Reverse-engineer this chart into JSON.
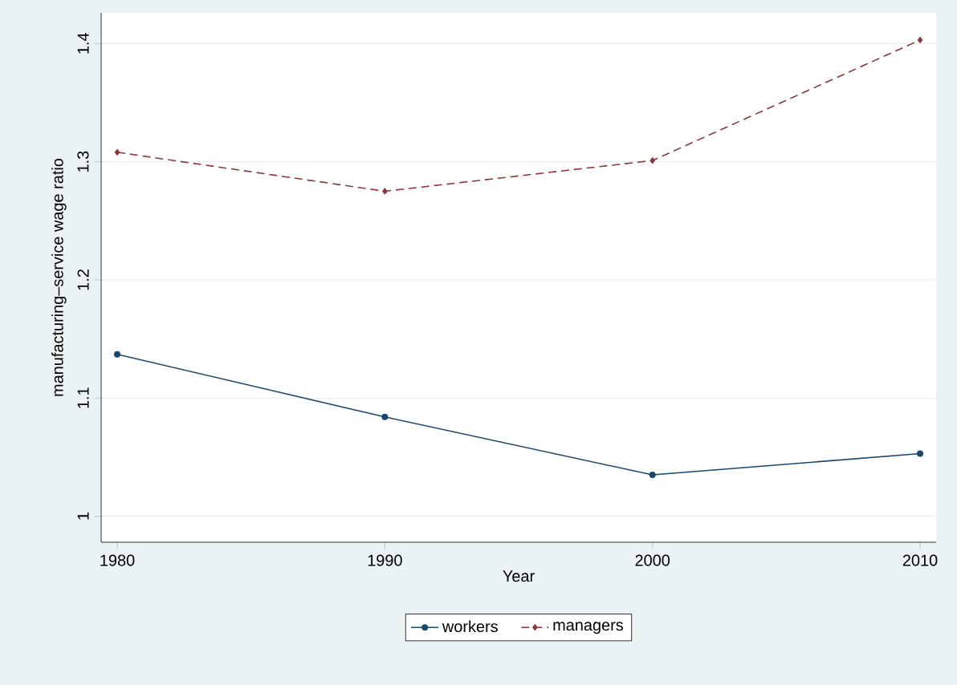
{
  "chart_data": {
    "type": "line",
    "xlabel": "Year",
    "ylabel": "manufacturing–service wage ratio",
    "x": [
      1980,
      1990,
      2000,
      2010
    ],
    "series": [
      {
        "name": "workers",
        "color": "#1a476f",
        "values": [
          1.137,
          1.084,
          1.035,
          1.053
        ],
        "marker": "circle",
        "line_style": "solid"
      },
      {
        "name": "managers",
        "color": "#90353b",
        "values": [
          1.308,
          1.275,
          1.301,
          1.403
        ],
        "marker": "diamond",
        "line_style": "dashed"
      }
    ],
    "xlim": [
      1979.4,
      2010.6
    ],
    "ylim": [
      0.978,
      1.426
    ],
    "xticks": [
      1980,
      1990,
      2000,
      2010
    ],
    "yticks": [
      1,
      1.1,
      1.2,
      1.3,
      1.4
    ],
    "grid": "y",
    "legend": "bottom"
  }
}
